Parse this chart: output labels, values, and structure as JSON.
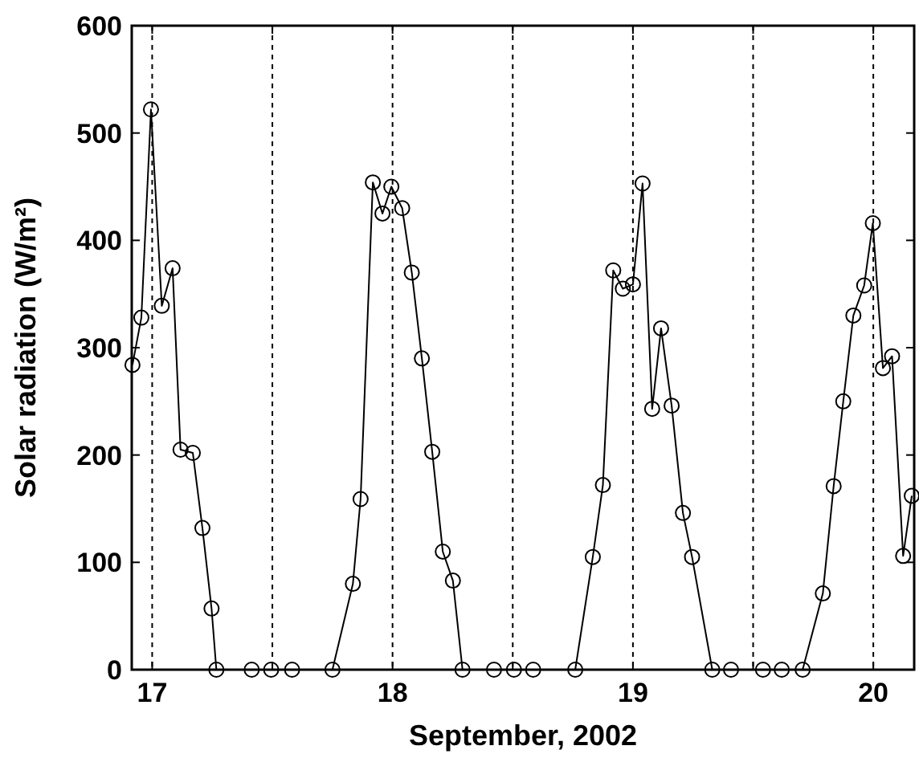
{
  "chart_data": {
    "type": "line",
    "xlabel": "September, 2002",
    "ylabel": "Solar radiation (W/m²)",
    "xlim": [
      16.915,
      20.17
    ],
    "ylim": [
      0,
      600
    ],
    "xticks": [
      17,
      {
        "value": 17.5,
        "label": null
      },
      18,
      {
        "value": 18.5,
        "label": null
      },
      19,
      {
        "value": 19.5,
        "label": null
      },
      20
    ],
    "yticks": [
      0,
      100,
      200,
      300,
      400,
      500,
      600
    ],
    "grid": "x",
    "marker": "circle",
    "line_style": "solid",
    "series": [
      {
        "color": "#000000",
        "x": [
          16.918,
          16.955,
          16.995,
          17.04,
          17.085,
          17.118,
          17.169,
          17.209,
          17.247,
          17.267,
          17.414,
          17.495,
          17.582,
          17.75,
          17.835,
          17.867,
          17.918,
          17.958,
          17.995,
          18.04,
          18.08,
          18.122,
          18.165,
          18.209,
          18.251,
          18.291,
          18.422,
          18.505,
          18.585,
          18.76,
          18.833,
          18.875,
          18.918,
          18.958,
          19.0,
          19.04,
          19.08,
          19.117,
          19.161,
          19.208,
          19.246,
          19.33,
          19.408,
          19.541,
          19.619,
          19.706,
          19.79,
          19.835,
          19.875,
          19.917,
          19.962,
          19.998,
          20.04,
          20.078,
          20.124,
          20.16
        ],
        "values": [
          284,
          328,
          522,
          339,
          374,
          205,
          202,
          132,
          57,
          0,
          0,
          0,
          0,
          0,
          80,
          159,
          454,
          425,
          450,
          430,
          370,
          290,
          203,
          110,
          83,
          0,
          0,
          0,
          0,
          0,
          105,
          172,
          372,
          355,
          359,
          453,
          243,
          318,
          246,
          146,
          105,
          0,
          0,
          0,
          0,
          0,
          71,
          171,
          250,
          330,
          358,
          416,
          281,
          292,
          106,
          162
        ]
      }
    ]
  }
}
